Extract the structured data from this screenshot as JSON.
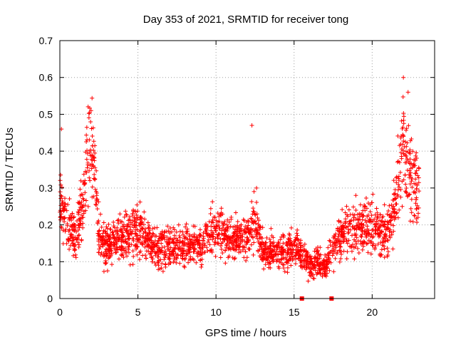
{
  "chart_data": {
    "type": "scatter",
    "title": "Day 353 of 2021, SRMTID for receiver tong",
    "xlabel": "GPS time / hours",
    "ylabel": "SRMTID / TECUs",
    "xlim": [
      0,
      24
    ],
    "ylim": [
      0,
      0.7
    ],
    "xticks": [
      0,
      5,
      10,
      15,
      20
    ],
    "xtick_labels": [
      "0",
      "5",
      "10",
      "15",
      "20"
    ],
    "yticks": [
      0,
      0.1,
      0.2,
      0.3,
      0.4,
      0.5,
      0.6,
      0.7
    ],
    "ytick_labels": [
      "0",
      "0.1",
      "0.2",
      "0.3",
      "0.4",
      "0.5",
      "0.6",
      "0.7"
    ],
    "grid": true,
    "marker": "+",
    "colors": {
      "points": "#ff0000",
      "grid": "#a0a0a0",
      "axes": "#000000"
    },
    "series": [
      {
        "name": "SRMTID",
        "trend": {
          "x": [
            0,
            0.5,
            1,
            1.5,
            1.8,
            2.0,
            2.2,
            2.5,
            3,
            4,
            5,
            6,
            7,
            8,
            9,
            10,
            11,
            12,
            12.5,
            13,
            14,
            15,
            15.5,
            16,
            16.5,
            17,
            17.5,
            18,
            19,
            20,
            20.5,
            21,
            21.5,
            22,
            22.5,
            23
          ],
          "y": [
            0.27,
            0.2,
            0.17,
            0.25,
            0.4,
            0.42,
            0.35,
            0.17,
            0.15,
            0.16,
            0.2,
            0.14,
            0.14,
            0.14,
            0.15,
            0.18,
            0.16,
            0.17,
            0.22,
            0.13,
            0.12,
            0.14,
            0.12,
            0.09,
            0.1,
            0.08,
            0.14,
            0.17,
            0.19,
            0.2,
            0.18,
            0.18,
            0.26,
            0.43,
            0.32,
            0.28
          ]
        },
        "extremes": [
          {
            "x": 22.0,
            "y": 0.6
          },
          {
            "x": 2.0,
            "y": 0.51
          },
          {
            "x": 12.3,
            "y": 0.47
          },
          {
            "x": 22.3,
            "y": 0.56
          },
          {
            "x": 0.1,
            "y": 0.46
          }
        ],
        "zero_values": [
          {
            "x": 15.5,
            "y": 0
          },
          {
            "x": 17.4,
            "y": 0
          }
        ],
        "approx_point_count": 2300
      }
    ]
  }
}
